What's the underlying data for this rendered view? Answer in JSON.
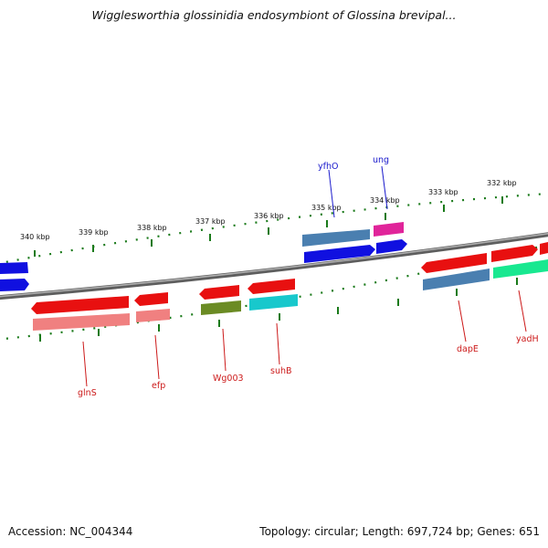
{
  "title": "Wigglesworthia glossinidia endosymbiont of Glossina brevipal...",
  "footer": {
    "accession": "Accession: NC_004344",
    "summary": "Topology: circular; Length: 697,724 bp; Genes: 651"
  },
  "colors": {
    "backbone": "#7a7a7a",
    "scale_ticks": "#1a7a1a",
    "forward_label": "#1a1acc",
    "reverse_label": "#cc1a1a"
  },
  "scale_labels": [
    "340 kbp",
    "339 kbp",
    "338 kbp",
    "337 kbp",
    "336 kbp",
    "335 kbp",
    "334 kbp",
    "333 kbp",
    "332 kbp"
  ],
  "gene_labels": {
    "yfhO": "yfhO",
    "ung": "ung",
    "glnS": "glnS",
    "efp": "efp",
    "Wg003": "Wg003",
    "suhB": "suhB",
    "dapE": "dapE",
    "yadH": "yadH"
  }
}
